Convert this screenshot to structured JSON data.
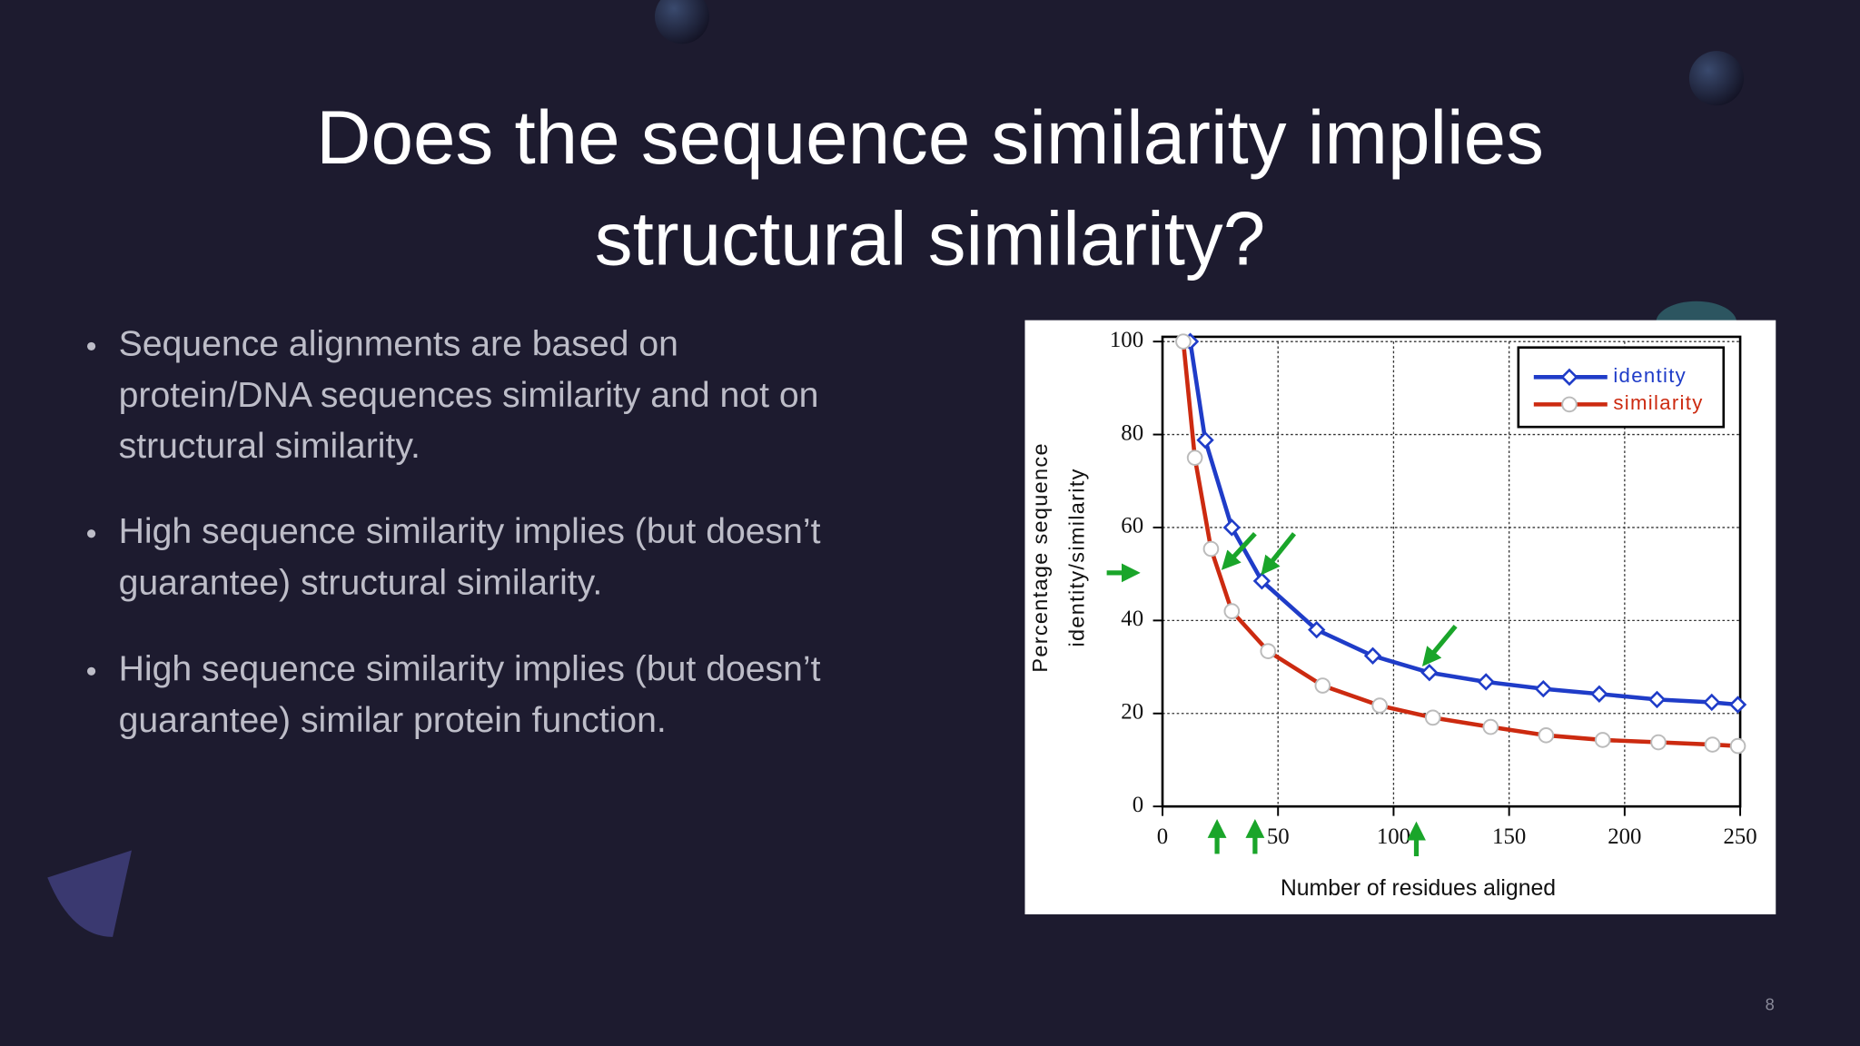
{
  "title_lines": [
    "Does the sequence similarity implies",
    "structural similarity?"
  ],
  "bullets": [
    [
      "Sequence alignments are based on",
      "protein/DNA sequences similarity and not on",
      "structural similarity."
    ],
    [
      "High sequence similarity implies (but doesn’t",
      "guarantee) structural similarity."
    ],
    [
      "High sequence similarity implies (but doesn’t",
      "guarantee) similar protein function."
    ]
  ],
  "page_number": "8",
  "chart_data": {
    "type": "line",
    "xlabel": "Number of residues aligned",
    "ylabel": [
      "Percentage sequence",
      "identity/similarity"
    ],
    "xlim": [
      0,
      250
    ],
    "xticks": [
      0,
      50,
      100,
      150,
      200,
      250
    ],
    "ylim": [
      0,
      100
    ],
    "yticks": [
      0,
      20,
      40,
      60,
      80,
      100
    ],
    "grid": true,
    "legend": "upper right",
    "series": [
      {
        "name": "identity",
        "color": "#1f3cc8",
        "marker": "diamond",
        "x": [
          12,
          18.5,
          30,
          43,
          66.7,
          91,
          115.5,
          140,
          164.8,
          189,
          214,
          237.7,
          249
        ],
        "values": [
          100,
          78.8,
          60,
          48.5,
          38,
          32.4,
          28.8,
          26.8,
          25.3,
          24.2,
          23,
          22.4,
          21.9
        ]
      },
      {
        "name": "similarity",
        "color": "#cc2a10",
        "marker": "circle",
        "x": [
          9,
          14,
          21,
          30,
          45.7,
          69.3,
          94,
          117,
          142,
          166,
          190.5,
          214.6,
          238,
          249
        ],
        "values": [
          100,
          75,
          55.4,
          42,
          33.4,
          26,
          21.7,
          19.1,
          17.1,
          15.3,
          14.3,
          13.8,
          13.3,
          13
        ]
      }
    ]
  }
}
